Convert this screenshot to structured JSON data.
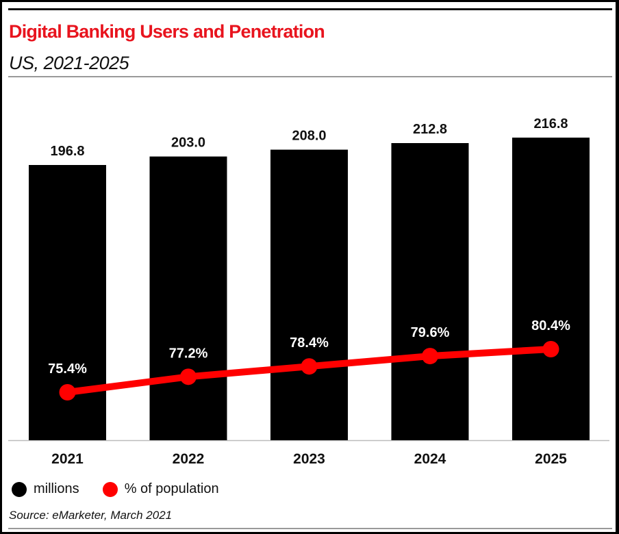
{
  "chart_data": {
    "type": "bar+line",
    "title": "Digital Banking Users and Penetration",
    "subtitle": "US, 2021-2025",
    "categories": [
      "2021",
      "2022",
      "2023",
      "2024",
      "2025"
    ],
    "series": [
      {
        "name": "millions",
        "type": "bar",
        "values": [
          196.8,
          203.0,
          208.0,
          212.8,
          216.8
        ],
        "labels": [
          "196.8",
          "203.0",
          "208.0",
          "212.8",
          "216.8"
        ],
        "color": "#000000"
      },
      {
        "name": "% of population",
        "type": "line",
        "values": [
          75.4,
          77.2,
          78.4,
          79.6,
          80.4
        ],
        "labels": [
          "75.4%",
          "77.2%",
          "78.4%",
          "79.6%",
          "80.4%"
        ],
        "color": "#ff0000"
      }
    ],
    "legend": "bottom-left",
    "grid": false,
    "source": "Source: eMarketer, March 2021"
  }
}
